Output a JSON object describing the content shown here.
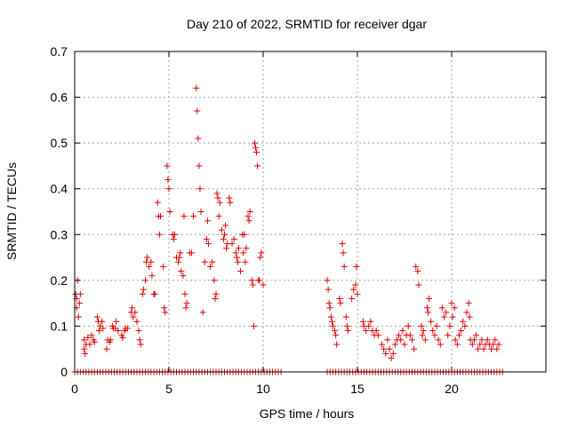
{
  "chart_data": {
    "type": "scatter",
    "title": "Day 210 of 2022, SRMTID for receiver dgar",
    "xlabel": "GPS time / hours",
    "ylabel": "SRMTID / TECUs",
    "xlim": [
      0,
      25
    ],
    "ylim": [
      0,
      0.7
    ],
    "xticks": [
      0,
      5,
      10,
      15,
      20
    ],
    "yticks": [
      0,
      0.1,
      0.2,
      0.3,
      0.4,
      0.5,
      0.6,
      0.7
    ],
    "grid": true,
    "marker": "plus",
    "color": "#dd0000",
    "series": [
      {
        "name": "SRMTID",
        "points": [
          [
            0.05,
            0.17
          ],
          [
            0.1,
            0.14
          ],
          [
            0.1,
            0.16
          ],
          [
            0.15,
            0.2
          ],
          [
            0.2,
            0.12
          ],
          [
            0.25,
            0.15
          ],
          [
            0.3,
            0.17
          ],
          [
            0.5,
            0.05
          ],
          [
            0.5,
            0.07
          ],
          [
            0.55,
            0.04
          ],
          [
            0.6,
            0.06
          ],
          [
            0.7,
            0.075
          ],
          [
            0.8,
            0.06
          ],
          [
            0.9,
            0.08
          ],
          [
            1.0,
            0.07
          ],
          [
            1.05,
            0.065
          ],
          [
            1.2,
            0.12
          ],
          [
            1.25,
            0.11
          ],
          [
            1.3,
            0.09
          ],
          [
            1.35,
            0.1
          ],
          [
            1.45,
            0.11
          ],
          [
            1.5,
            0.095
          ],
          [
            1.7,
            0.05
          ],
          [
            1.75,
            0.07
          ],
          [
            1.85,
            0.065
          ],
          [
            1.9,
            0.07
          ],
          [
            2.0,
            0.1
          ],
          [
            2.05,
            0.095
          ],
          [
            2.15,
            0.095
          ],
          [
            2.2,
            0.11
          ],
          [
            2.3,
            0.09
          ],
          [
            2.5,
            0.08
          ],
          [
            2.55,
            0.075
          ],
          [
            2.65,
            0.09
          ],
          [
            2.7,
            0.095
          ],
          [
            2.8,
            0.095
          ],
          [
            3.0,
            0.13
          ],
          [
            3.05,
            0.14
          ],
          [
            3.1,
            0.12
          ],
          [
            3.2,
            0.13
          ],
          [
            3.3,
            0.11
          ],
          [
            3.4,
            0.09
          ],
          [
            3.45,
            0.07
          ],
          [
            3.5,
            0.06
          ],
          [
            3.6,
            0.17
          ],
          [
            3.65,
            0.18
          ],
          [
            3.75,
            0.2
          ],
          [
            3.8,
            0.24
          ],
          [
            3.85,
            0.25
          ],
          [
            3.95,
            0.23
          ],
          [
            4.05,
            0.24
          ],
          [
            4.1,
            0.21
          ],
          [
            4.2,
            0.17
          ],
          [
            4.25,
            0.17
          ],
          [
            4.4,
            0.37
          ],
          [
            4.45,
            0.34
          ],
          [
            4.5,
            0.3
          ],
          [
            4.55,
            0.34
          ],
          [
            4.7,
            0.23
          ],
          [
            4.75,
            0.14
          ],
          [
            4.8,
            0.13
          ],
          [
            4.9,
            0.45
          ],
          [
            4.95,
            0.42
          ],
          [
            5.0,
            0.4
          ],
          [
            5.05,
            0.35
          ],
          [
            5.2,
            0.3
          ],
          [
            5.25,
            0.29
          ],
          [
            5.3,
            0.3
          ],
          [
            5.4,
            0.25
          ],
          [
            5.5,
            0.24
          ],
          [
            5.55,
            0.25
          ],
          [
            5.6,
            0.26
          ],
          [
            5.65,
            0.22
          ],
          [
            5.75,
            0.21
          ],
          [
            5.8,
            0.34
          ],
          [
            5.85,
            0.17
          ],
          [
            5.9,
            0.14
          ],
          [
            5.95,
            0.15
          ],
          [
            6.1,
            0.26
          ],
          [
            6.2,
            0.26
          ],
          [
            6.3,
            0.34
          ],
          [
            6.45,
            0.62
          ],
          [
            6.5,
            0.57
          ],
          [
            6.55,
            0.51
          ],
          [
            6.6,
            0.45
          ],
          [
            6.65,
            0.4
          ],
          [
            6.7,
            0.35
          ],
          [
            6.8,
            0.13
          ],
          [
            6.9,
            0.24
          ],
          [
            7.0,
            0.29
          ],
          [
            7.05,
            0.33
          ],
          [
            7.1,
            0.28
          ],
          [
            7.2,
            0.23
          ],
          [
            7.3,
            0.24
          ],
          [
            7.4,
            0.2
          ],
          [
            7.45,
            0.16
          ],
          [
            7.5,
            0.17
          ],
          [
            7.55,
            0.39
          ],
          [
            7.6,
            0.38
          ],
          [
            7.65,
            0.34
          ],
          [
            7.7,
            0.37
          ],
          [
            7.8,
            0.31
          ],
          [
            7.9,
            0.29
          ],
          [
            7.95,
            0.3
          ],
          [
            8.0,
            0.32
          ],
          [
            8.05,
            0.27
          ],
          [
            8.1,
            0.28
          ],
          [
            8.2,
            0.38
          ],
          [
            8.25,
            0.37
          ],
          [
            8.35,
            0.28
          ],
          [
            8.45,
            0.29
          ],
          [
            8.55,
            0.26
          ],
          [
            8.6,
            0.25
          ],
          [
            8.65,
            0.24
          ],
          [
            8.7,
            0.27
          ],
          [
            8.8,
            0.22
          ],
          [
            8.9,
            0.3
          ],
          [
            8.95,
            0.26
          ],
          [
            9.0,
            0.3
          ],
          [
            9.05,
            0.24
          ],
          [
            9.1,
            0.27
          ],
          [
            9.2,
            0.34
          ],
          [
            9.25,
            0.33
          ],
          [
            9.3,
            0.35
          ],
          [
            9.4,
            0.2
          ],
          [
            9.45,
            0.19
          ],
          [
            9.5,
            0.1
          ],
          [
            9.55,
            0.5
          ],
          [
            9.6,
            0.49
          ],
          [
            9.65,
            0.48
          ],
          [
            9.7,
            0.45
          ],
          [
            9.75,
            0.2
          ],
          [
            9.8,
            0.2
          ],
          [
            9.85,
            0.25
          ],
          [
            9.9,
            0.26
          ],
          [
            10.0,
            0.19
          ],
          [
            13.4,
            0.2
          ],
          [
            13.45,
            0.18
          ],
          [
            13.5,
            0.15
          ],
          [
            13.55,
            0.14
          ],
          [
            13.6,
            0.12
          ],
          [
            13.65,
            0.11
          ],
          [
            13.7,
            0.1
          ],
          [
            13.8,
            0.09
          ],
          [
            13.85,
            0.08
          ],
          [
            13.9,
            0.06
          ],
          [
            14.05,
            0.16
          ],
          [
            14.1,
            0.15
          ],
          [
            14.2,
            0.28
          ],
          [
            14.25,
            0.26
          ],
          [
            14.3,
            0.23
          ],
          [
            14.4,
            0.12
          ],
          [
            14.45,
            0.1
          ],
          [
            14.5,
            0.09
          ],
          [
            14.7,
            0.16
          ],
          [
            14.8,
            0.18
          ],
          [
            14.9,
            0.19
          ],
          [
            14.95,
            0.23
          ],
          [
            15.0,
            0.17
          ],
          [
            15.3,
            0.11
          ],
          [
            15.35,
            0.1
          ],
          [
            15.45,
            0.09
          ],
          [
            15.6,
            0.1
          ],
          [
            15.7,
            0.11
          ],
          [
            15.8,
            0.09
          ],
          [
            15.9,
            0.08
          ],
          [
            16.0,
            0.09
          ],
          [
            16.1,
            0.08
          ],
          [
            16.3,
            0.06
          ],
          [
            16.4,
            0.05
          ],
          [
            16.5,
            0.04
          ],
          [
            16.6,
            0.07
          ],
          [
            16.7,
            0.05
          ],
          [
            16.8,
            0.03
          ],
          [
            16.9,
            0.04
          ],
          [
            17.0,
            0.06
          ],
          [
            17.1,
            0.07
          ],
          [
            17.2,
            0.08
          ],
          [
            17.3,
            0.07
          ],
          [
            17.4,
            0.09
          ],
          [
            17.5,
            0.06
          ],
          [
            17.6,
            0.08
          ],
          [
            17.7,
            0.1
          ],
          [
            17.8,
            0.08
          ],
          [
            17.9,
            0.07
          ],
          [
            18.0,
            0.05
          ],
          [
            18.1,
            0.23
          ],
          [
            18.2,
            0.22
          ],
          [
            18.25,
            0.19
          ],
          [
            18.4,
            0.1
          ],
          [
            18.45,
            0.08
          ],
          [
            18.5,
            0.09
          ],
          [
            18.6,
            0.07
          ],
          [
            18.7,
            0.14
          ],
          [
            18.75,
            0.13
          ],
          [
            18.8,
            0.16
          ],
          [
            18.9,
            0.11
          ],
          [
            19.0,
            0.09
          ],
          [
            19.1,
            0.08
          ],
          [
            19.2,
            0.1
          ],
          [
            19.3,
            0.07
          ],
          [
            19.4,
            0.06
          ],
          [
            19.5,
            0.14
          ],
          [
            19.6,
            0.12
          ],
          [
            19.7,
            0.13
          ],
          [
            19.8,
            0.08
          ],
          [
            19.9,
            0.1
          ],
          [
            20.0,
            0.15
          ],
          [
            20.05,
            0.12
          ],
          [
            20.15,
            0.14
          ],
          [
            20.2,
            0.07
          ],
          [
            20.3,
            0.06
          ],
          [
            20.4,
            0.08
          ],
          [
            20.5,
            0.09
          ],
          [
            20.6,
            0.11
          ],
          [
            20.7,
            0.1
          ],
          [
            20.8,
            0.13
          ],
          [
            20.9,
            0.15
          ],
          [
            20.95,
            0.12
          ],
          [
            21.0,
            0.07
          ],
          [
            21.1,
            0.06
          ],
          [
            21.2,
            0.07
          ],
          [
            21.3,
            0.08
          ],
          [
            21.4,
            0.05
          ],
          [
            21.5,
            0.06
          ],
          [
            21.6,
            0.07
          ],
          [
            21.7,
            0.05
          ],
          [
            21.8,
            0.06
          ],
          [
            21.9,
            0.07
          ],
          [
            22.0,
            0.06
          ],
          [
            22.1,
            0.05
          ],
          [
            22.2,
            0.06
          ],
          [
            22.3,
            0.07
          ],
          [
            22.4,
            0.05
          ],
          [
            22.5,
            0.06
          ]
        ]
      }
    ],
    "zero_series": {
      "name": "SRMTID zero",
      "y": 0,
      "segments": [
        [
          0.0,
          11.0
        ],
        [
          13.4,
          22.7
        ]
      ],
      "step": 0.15
    }
  }
}
